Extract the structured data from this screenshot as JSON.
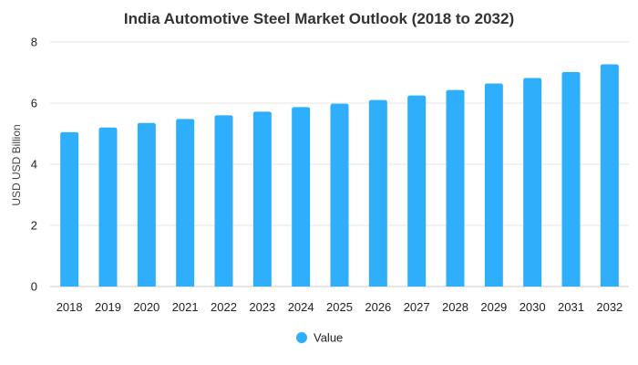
{
  "chart_data": {
    "type": "bar",
    "title": "India Automotive Steel Market Outlook (2018 to 2032)",
    "xlabel": "",
    "ylabel": "USD USD Billion",
    "ylim": [
      0,
      8
    ],
    "yticks": [
      0,
      2,
      4,
      6,
      8
    ],
    "grid": true,
    "legend_position": "bottom",
    "categories": [
      "2018",
      "2019",
      "2020",
      "2021",
      "2022",
      "2023",
      "2024",
      "2025",
      "2026",
      "2027",
      "2028",
      "2029",
      "2030",
      "2031",
      "2032"
    ],
    "series": [
      {
        "name": "Value",
        "color": "#2eaefb",
        "values": [
          5.05,
          5.2,
          5.35,
          5.48,
          5.6,
          5.72,
          5.87,
          5.98,
          6.1,
          6.25,
          6.43,
          6.64,
          6.82,
          7.02,
          7.27
        ]
      }
    ]
  }
}
